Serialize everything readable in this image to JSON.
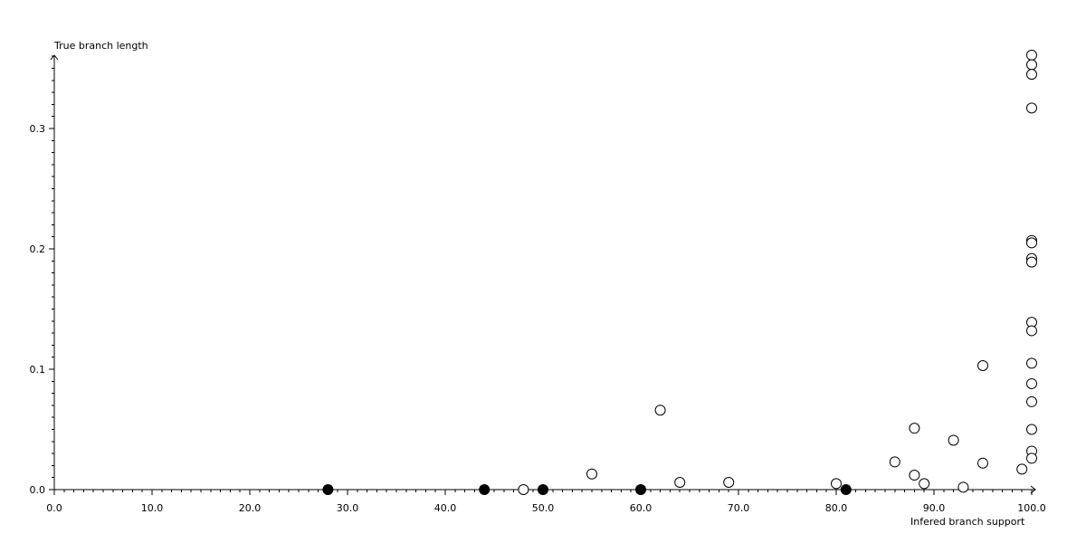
{
  "chart_data": {
    "type": "scatter",
    "title": "",
    "xlabel": "Infered branch support",
    "ylabel": "True branch length",
    "xlim": [
      0,
      100
    ],
    "ylim": [
      0,
      0.36
    ],
    "x_ticks": [
      "0.0",
      "10.0",
      "20.0",
      "30.0",
      "40.0",
      "50.0",
      "60.0",
      "70.0",
      "80.0",
      "90.0",
      "100.0"
    ],
    "y_ticks": [
      "0.0",
      "0.1",
      "0.2",
      "0.3"
    ],
    "grid": false,
    "series": [
      {
        "marker": "filled-circle",
        "color": "#000000",
        "points": [
          [
            28,
            0
          ],
          [
            44,
            0
          ],
          [
            50,
            0
          ],
          [
            60,
            0
          ],
          [
            81,
            0
          ]
        ]
      },
      {
        "marker": "open-circle",
        "color": "#000000",
        "points": [
          [
            48,
            0
          ],
          [
            55,
            0.013
          ],
          [
            62,
            0.066
          ],
          [
            64,
            0.006
          ],
          [
            69,
            0.006
          ],
          [
            80,
            0.005
          ],
          [
            86,
            0.023
          ],
          [
            88,
            0.051
          ],
          [
            88,
            0.012
          ],
          [
            89,
            0.005
          ],
          [
            92,
            0.041
          ],
          [
            93,
            0.002
          ],
          [
            95,
            0.103
          ],
          [
            95,
            0.022
          ],
          [
            99,
            0.017
          ],
          [
            100,
            0.361
          ],
          [
            100,
            0.353
          ],
          [
            100,
            0.345
          ],
          [
            100,
            0.317
          ],
          [
            100,
            0.207
          ],
          [
            100,
            0.205
          ],
          [
            100,
            0.192
          ],
          [
            100,
            0.189
          ],
          [
            100,
            0.139
          ],
          [
            100,
            0.132
          ],
          [
            100,
            0.105
          ],
          [
            100,
            0.088
          ],
          [
            100,
            0.073
          ],
          [
            100,
            0.05
          ],
          [
            100,
            0.032
          ],
          [
            100,
            0.026
          ]
        ]
      }
    ]
  }
}
